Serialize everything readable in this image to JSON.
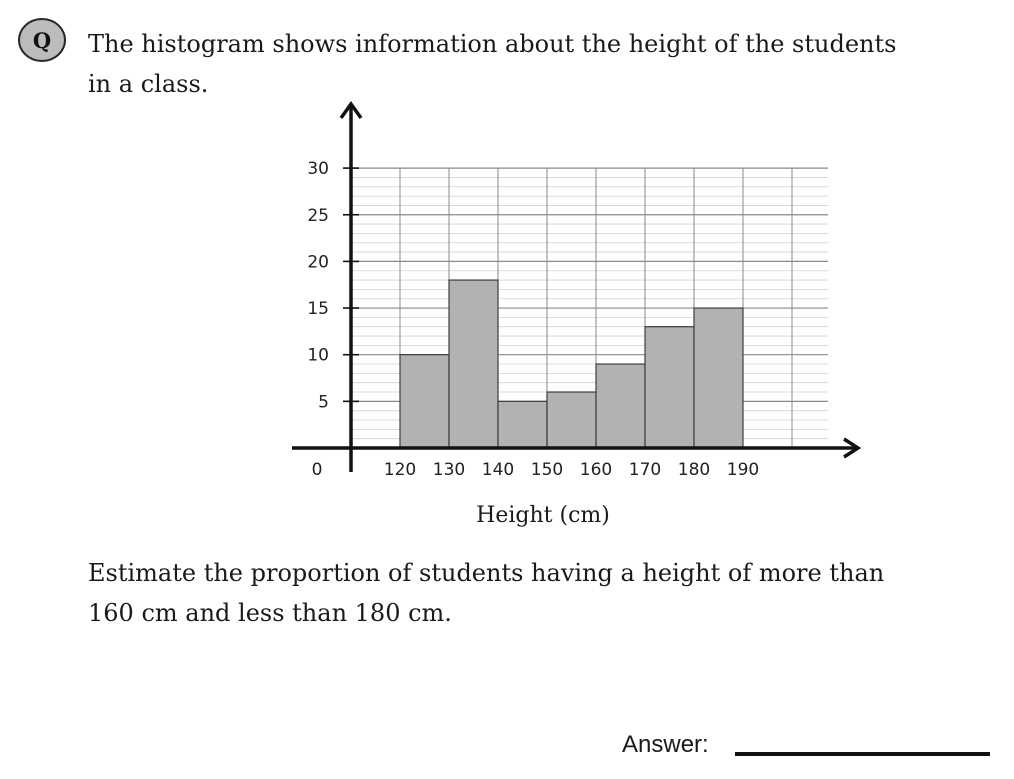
{
  "question": {
    "badge": "Q",
    "lines": [
      "The histogram shows information about the height of the students",
      "in a class."
    ]
  },
  "prompt": {
    "lines": [
      "Estimate the proportion of students having a height of more than",
      "160 cm and less than 180 cm."
    ]
  },
  "answer": {
    "label": "Answer:"
  },
  "chart_data": {
    "type": "bar",
    "title": "",
    "xlabel": "Height (cm)",
    "ylabel": "",
    "x_ticks": [
      120,
      130,
      140,
      150,
      160,
      170,
      180,
      190
    ],
    "y_ticks": [
      5,
      10,
      15,
      20,
      25,
      30
    ],
    "y_zero_label": "0",
    "xlim": [
      110,
      200
    ],
    "ylim": [
      0,
      30
    ],
    "grid": true,
    "bars": [
      {
        "x0": 120,
        "x1": 130,
        "value": 10
      },
      {
        "x0": 130,
        "x1": 140,
        "value": 18
      },
      {
        "x0": 140,
        "x1": 150,
        "value": 5
      },
      {
        "x0": 150,
        "x1": 160,
        "value": 6
      },
      {
        "x0": 160,
        "x1": 170,
        "value": 9
      },
      {
        "x0": 170,
        "x1": 180,
        "value": 13
      },
      {
        "x0": 180,
        "x1": 190,
        "value": 15
      }
    ],
    "bar_color": "#b1b3b1",
    "bar_edge_color": "#3c3c3c"
  }
}
